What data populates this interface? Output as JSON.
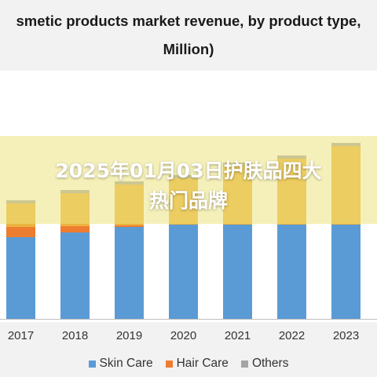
{
  "chart_data": {
    "type": "bar",
    "stacked": true,
    "title_lines": [
      "smetic products market revenue, by product type,",
      "Million)"
    ],
    "categories": [
      "2017",
      "2018",
      "2019",
      "2020",
      "2021",
      "2022",
      "2023"
    ],
    "series": [
      {
        "name": "Skin Care",
        "color": "#5b9bd5",
        "values": [
          104,
          110,
          117,
          120,
          120,
          120,
          120
        ]
      },
      {
        "name": "Hair Care",
        "color": "#ed7d31",
        "values": [
          13,
          8,
          2,
          0,
          0,
          0,
          0
        ]
      },
      {
        "name": "Others",
        "color": "#a5a5a5",
        "values": [
          4,
          4,
          4,
          4,
          4,
          4,
          4
        ]
      }
    ],
    "hidden_series_color": "#ecb23f",
    "hidden_series_values": [
      30,
      42,
      52,
      59,
      75,
      84,
      100
    ],
    "ylim": [
      0,
      240
    ],
    "grid": false,
    "legend_position": "bottom"
  },
  "overlay": {
    "lines": [
      "2025年01月03日护肤品四大",
      "热门品牌"
    ]
  }
}
